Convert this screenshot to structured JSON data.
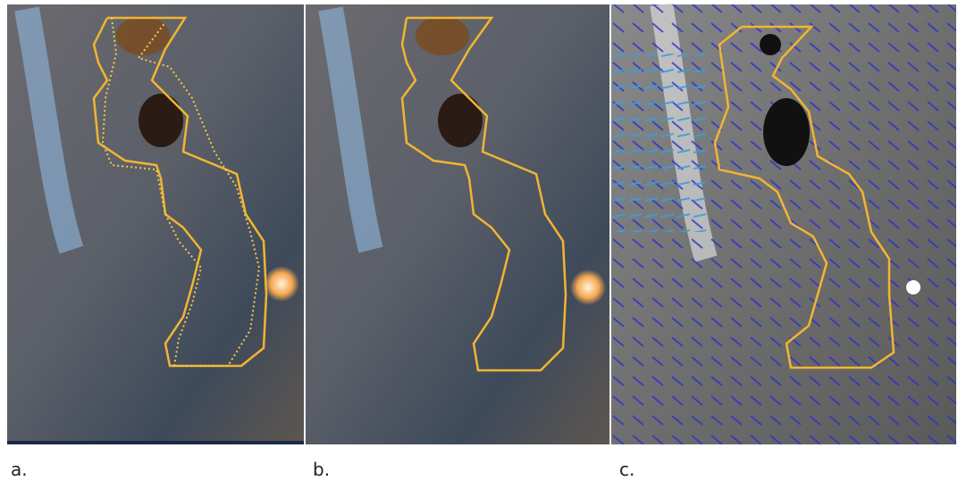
{
  "panels": [
    {
      "label": "a."
    },
    {
      "label": "b."
    },
    {
      "label": "c."
    }
  ]
}
